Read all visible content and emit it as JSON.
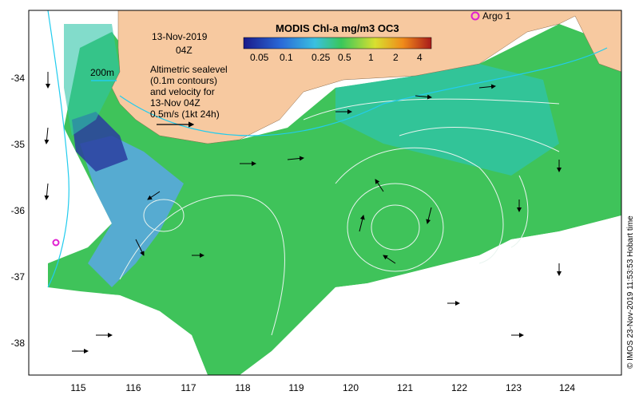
{
  "map": {
    "date_line": "13-Nov-2019",
    "time_line": "04Z",
    "legend_title": "MODIS Chl-a mg/m3 OC3",
    "colorbar_ticks": [
      "0.05",
      "0.1",
      "0.25",
      "0.5",
      "1",
      "2",
      "4"
    ],
    "annotation_lines": [
      "Altimetric sealevel",
      "(0.1m contours)",
      "and velocity for",
      "13-Nov 04Z",
      "0.5m/s (1kt 24h)"
    ],
    "depth_label": "200m",
    "float_label": "Argo 1",
    "credit": "© IMOS 23-Nov-2019 11:53:53 Hobart time",
    "lon_ticks": [
      "115",
      "116",
      "117",
      "118",
      "119",
      "120",
      "121",
      "122",
      "123",
      "124"
    ],
    "lat_ticks": [
      "-34",
      "-35",
      "-36",
      "-37",
      "-38"
    ],
    "colors": {
      "land": "#f7c9a0",
      "ocean_green": "#3fc35a",
      "ocean_teal": "#2fc4a8",
      "ocean_blue": "#5aa7e6",
      "deep_blue": "#2a3da0",
      "contour": "#e8f4ef",
      "isobath": "#22ccee",
      "argo_marker": "#e020d0"
    }
  }
}
